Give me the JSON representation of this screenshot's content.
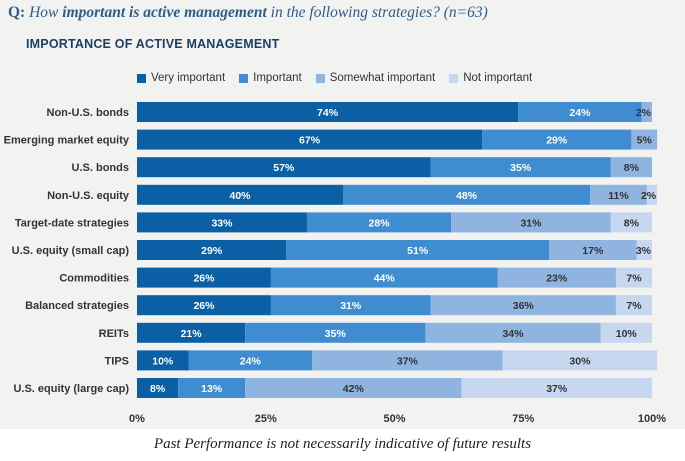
{
  "question": {
    "prefix": "Q:",
    "part1": "How ",
    "emphasis1": "important is active management",
    "part2": " in the following strategies? (n=63)"
  },
  "chart_title": "IMPORTANCE OF ACTIVE MANAGEMENT",
  "footnote": "Past Performance is not necessarily indicative of future results",
  "colors": {
    "very_important": "#0b5fa5",
    "important": "#3f8dd0",
    "somewhat_important": "#8fb4e0",
    "not_important": "#c6d7ef",
    "panel_background": "#f2f2f0"
  },
  "chart_data": {
    "type": "bar",
    "orientation": "horizontal",
    "stacked": true,
    "title": "IMPORTANCE OF ACTIVE MANAGEMENT",
    "xlim": [
      0,
      100
    ],
    "x_ticks": [
      "0%",
      "25%",
      "50%",
      "75%",
      "100%"
    ],
    "legend_position": "top",
    "grid": false,
    "categories": [
      "Non-U.S. bonds",
      "Emerging market equity",
      "U.S. bonds",
      "Non-U.S. equity",
      "Target-date strategies",
      "U.S. equity (small cap)",
      "Commodities",
      "Balanced strategies",
      "REITs",
      "TIPS",
      "U.S. equity (large cap)"
    ],
    "series": [
      {
        "name": "Very important",
        "values": [
          74,
          67,
          57,
          40,
          33,
          29,
          26,
          26,
          21,
          10,
          8
        ]
      },
      {
        "name": "Important",
        "values": [
          24,
          29,
          35,
          48,
          28,
          51,
          44,
          31,
          35,
          24,
          13
        ]
      },
      {
        "name": "Somewhat important",
        "values": [
          2,
          5,
          8,
          11,
          31,
          17,
          23,
          36,
          34,
          37,
          42
        ]
      },
      {
        "name": "Not important",
        "values": [
          0,
          0,
          0,
          2,
          8,
          3,
          7,
          7,
          10,
          30,
          37
        ]
      }
    ]
  }
}
